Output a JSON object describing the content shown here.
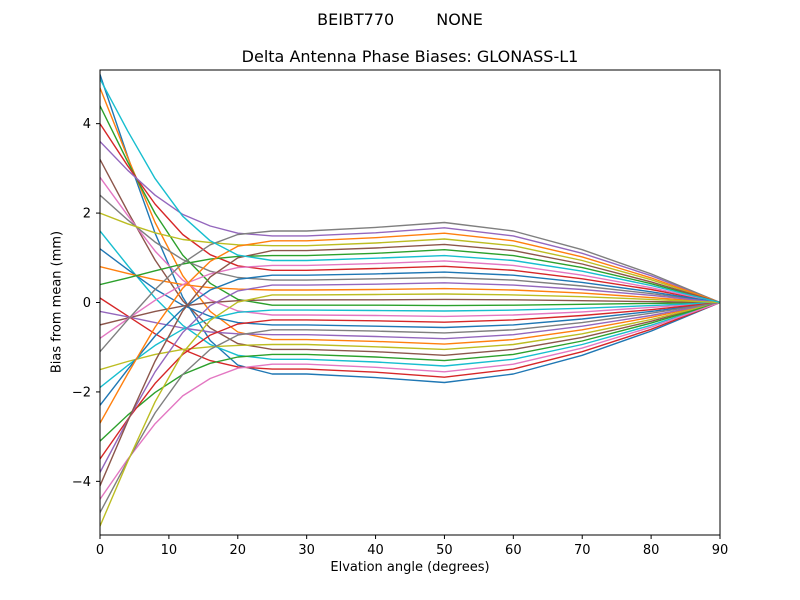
{
  "chart_data": {
    "type": "line",
    "suptitle_left": "BEIBT770",
    "suptitle_right": "NONE",
    "title": "Delta Antenna Phase Biases: GLONASS-L1",
    "xlabel": "Elvation angle (degrees)",
    "ylabel": "Bias from mean (mm)",
    "xlim": [
      0,
      90
    ],
    "ylim": [
      -5.2,
      5.2
    ],
    "xticks": [
      0,
      10,
      20,
      30,
      40,
      50,
      60,
      70,
      80,
      90
    ],
    "yticks": [
      -4,
      -2,
      0,
      2,
      4
    ],
    "grid": false,
    "legend": false,
    "x": [
      0,
      4,
      8,
      12,
      16,
      20,
      25,
      30,
      40,
      50,
      60,
      70,
      80,
      90
    ],
    "series": [
      {
        "color": "#1f77b4",
        "values": [
          5.1,
          3.27,
          1.55,
          0.12,
          -0.85,
          -1.4,
          -1.6,
          -1.6,
          -1.68,
          -1.79,
          -1.6,
          -1.18,
          -0.64,
          0
        ]
      },
      {
        "color": "#ff7f0e",
        "values": [
          4.8,
          3.25,
          1.79,
          0.6,
          -0.2,
          -0.66,
          -0.83,
          -0.83,
          -0.87,
          -0.93,
          -0.83,
          -0.61,
          -0.33,
          0
        ]
      },
      {
        "color": "#2ca02c",
        "values": [
          4.4,
          3.15,
          1.99,
          1.06,
          0.43,
          0.07,
          -0.06,
          -0.06,
          -0.06,
          -0.07,
          -0.06,
          -0.04,
          -0.02,
          0
        ]
      },
      {
        "color": "#d62728",
        "values": [
          4.0,
          3.06,
          2.2,
          1.52,
          1.07,
          0.82,
          0.72,
          0.72,
          0.76,
          0.81,
          0.72,
          0.53,
          0.29,
          0
        ]
      },
      {
        "color": "#9467bd",
        "values": [
          3.6,
          2.96,
          2.4,
          1.97,
          1.71,
          1.55,
          1.49,
          1.49,
          1.56,
          1.67,
          1.49,
          1.1,
          0.6,
          0
        ]
      },
      {
        "color": "#8c564b",
        "values": [
          3.2,
          2.04,
          0.95,
          0.04,
          -0.57,
          -0.92,
          -1.05,
          -1.05,
          -1.1,
          -1.18,
          -1.05,
          -0.78,
          -0.42,
          0
        ]
      },
      {
        "color": "#e377c2",
        "values": [
          2.8,
          1.95,
          1.15,
          0.5,
          0.06,
          -0.19,
          -0.28,
          -0.28,
          -0.29,
          -0.31,
          -0.28,
          -0.21,
          -0.11,
          0
        ]
      },
      {
        "color": "#7f7f7f",
        "values": [
          2.4,
          1.85,
          1.35,
          0.96,
          0.7,
          0.56,
          0.5,
          0.5,
          0.53,
          0.56,
          0.5,
          0.37,
          0.2,
          0
        ]
      },
      {
        "color": "#bcbd22",
        "values": [
          2.0,
          1.76,
          1.56,
          1.41,
          1.34,
          1.29,
          1.27,
          1.27,
          1.33,
          1.42,
          1.27,
          0.94,
          0.51,
          0
        ]
      },
      {
        "color": "#17becf",
        "values": [
          1.6,
          0.83,
          0.1,
          -0.51,
          -0.94,
          -1.18,
          -1.27,
          -1.27,
          -1.33,
          -1.42,
          -1.27,
          -0.94,
          -0.51,
          0
        ]
      },
      {
        "color": "#1f77b4",
        "values": [
          1.2,
          0.74,
          0.3,
          -0.06,
          -0.31,
          -0.45,
          -0.5,
          -0.5,
          -0.53,
          -0.56,
          -0.5,
          -0.37,
          -0.2,
          0
        ]
      },
      {
        "color": "#ff7f0e",
        "values": [
          0.8,
          0.65,
          0.51,
          0.4,
          0.33,
          0.3,
          0.28,
          0.28,
          0.29,
          0.31,
          0.28,
          0.21,
          0.11,
          0
        ]
      },
      {
        "color": "#2ca02c",
        "values": [
          0.4,
          0.55,
          0.71,
          0.86,
          0.97,
          1.03,
          1.05,
          1.05,
          1.1,
          1.18,
          1.05,
          0.78,
          0.42,
          0
        ]
      },
      {
        "color": "#d62728",
        "values": [
          0.1,
          -0.3,
          -0.7,
          -1.05,
          -1.3,
          -1.44,
          -1.49,
          -1.49,
          -1.56,
          -1.67,
          -1.49,
          -1.1,
          -0.6,
          0
        ]
      },
      {
        "color": "#9467bd",
        "values": [
          -0.2,
          -0.32,
          -0.45,
          -0.57,
          -0.66,
          -0.7,
          -0.72,
          -0.72,
          -0.76,
          -0.81,
          -0.72,
          -0.53,
          -0.29,
          0
        ]
      },
      {
        "color": "#8c564b",
        "values": [
          -0.5,
          -0.35,
          -0.2,
          -0.08,
          0.0,
          0.04,
          0.06,
          0.06,
          0.06,
          0.07,
          0.06,
          0.04,
          0.02,
          0
        ]
      },
      {
        "color": "#e377c2",
        "values": [
          -0.8,
          -0.37,
          0.05,
          0.4,
          0.64,
          0.78,
          0.83,
          0.83,
          0.87,
          0.93,
          0.83,
          0.61,
          0.33,
          0
        ]
      },
      {
        "color": "#7f7f7f",
        "values": [
          -1.1,
          -0.39,
          0.29,
          0.88,
          1.29,
          1.52,
          1.6,
          1.6,
          1.68,
          1.79,
          1.6,
          1.18,
          0.64,
          0
        ]
      },
      {
        "color": "#bcbd22",
        "values": [
          -1.5,
          -1.32,
          -1.16,
          -1.05,
          -0.99,
          -0.96,
          -0.94,
          -0.94,
          -0.99,
          -1.05,
          -0.94,
          -0.7,
          -0.38,
          0
        ]
      },
      {
        "color": "#17becf",
        "values": [
          -1.9,
          -1.41,
          -0.96,
          -0.6,
          -0.36,
          -0.22,
          -0.17,
          -0.17,
          -0.18,
          -0.19,
          -0.17,
          -0.13,
          -0.07,
          0
        ]
      },
      {
        "color": "#1f77b4",
        "values": [
          -2.3,
          -1.5,
          -0.75,
          -0.14,
          0.28,
          0.52,
          0.61,
          0.61,
          0.64,
          0.68,
          0.61,
          0.45,
          0.24,
          0
        ]
      },
      {
        "color": "#ff7f0e",
        "values": [
          -2.7,
          -1.6,
          -0.55,
          0.32,
          0.92,
          1.26,
          1.38,
          1.38,
          1.45,
          1.55,
          1.38,
          1.02,
          0.55,
          0
        ]
      },
      {
        "color": "#2ca02c",
        "values": [
          -3.1,
          -2.52,
          -2.01,
          -1.61,
          -1.36,
          -1.22,
          -1.16,
          -1.16,
          -1.22,
          -1.3,
          -1.16,
          -0.86,
          -0.46,
          0
        ]
      },
      {
        "color": "#d62728",
        "values": [
          -3.5,
          -2.62,
          -1.81,
          -1.16,
          -0.73,
          -0.48,
          -0.39,
          -0.39,
          -0.41,
          -0.44,
          -0.39,
          -0.29,
          -0.16,
          0
        ]
      },
      {
        "color": "#9467bd",
        "values": [
          -3.8,
          -2.64,
          -1.55,
          -0.67,
          -0.07,
          0.26,
          0.39,
          0.39,
          0.41,
          0.44,
          0.39,
          0.29,
          0.16,
          0
        ]
      },
      {
        "color": "#8c564b",
        "values": [
          -4.1,
          -2.66,
          -1.31,
          -0.19,
          0.57,
          1.0,
          1.16,
          1.16,
          1.22,
          1.3,
          1.16,
          0.86,
          0.46,
          0
        ]
      },
      {
        "color": "#e377c2",
        "values": [
          -4.4,
          -3.51,
          -2.71,
          -2.09,
          -1.7,
          -1.47,
          -1.38,
          -1.38,
          -1.45,
          -1.55,
          -1.38,
          -1.02,
          -0.55,
          0
        ]
      },
      {
        "color": "#7f7f7f",
        "values": [
          -4.7,
          -3.54,
          -2.47,
          -1.61,
          -1.05,
          -0.73,
          -0.61,
          -0.61,
          -0.64,
          -0.68,
          -0.61,
          -0.45,
          -0.24,
          0
        ]
      },
      {
        "color": "#bcbd22",
        "values": [
          -5.0,
          -3.56,
          -2.22,
          -1.13,
          -0.4,
          0.01,
          0.17,
          0.17,
          0.18,
          0.19,
          0.17,
          0.13,
          0.07,
          0
        ]
      },
      {
        "color": "#17becf",
        "values": [
          5.0,
          3.84,
          2.77,
          1.93,
          1.38,
          1.06,
          0.94,
          0.94,
          0.99,
          1.05,
          0.94,
          0.7,
          0.38,
          0
        ]
      }
    ]
  }
}
